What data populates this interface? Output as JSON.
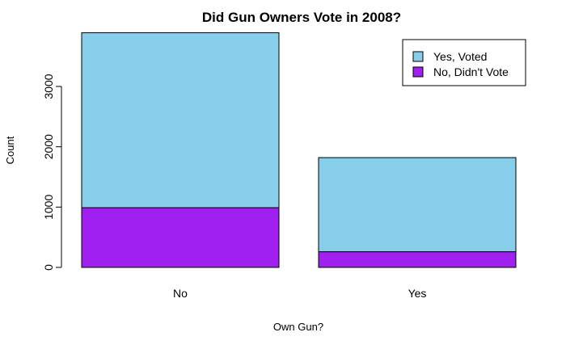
{
  "chart_data": {
    "type": "bar",
    "stacked": true,
    "title": "Did Gun Owners Vote in 2008?",
    "xlabel": "Own Gun?",
    "ylabel": "Count",
    "categories": [
      "No",
      "Yes"
    ],
    "series": [
      {
        "name": "No, Didn't Vote",
        "values": [
          990,
          260
        ],
        "color": "#A020F0"
      },
      {
        "name": "Yes, Voted",
        "values": [
          2900,
          1560
        ],
        "color": "#87CEEB"
      }
    ],
    "yticks": [
      0,
      1000,
      2000,
      3000
    ],
    "ylim": [
      0,
      3890
    ],
    "legend": {
      "position": "top-right",
      "entries": [
        "Yes, Voted",
        "No, Didn't Vote"
      ]
    },
    "grid": false
  }
}
